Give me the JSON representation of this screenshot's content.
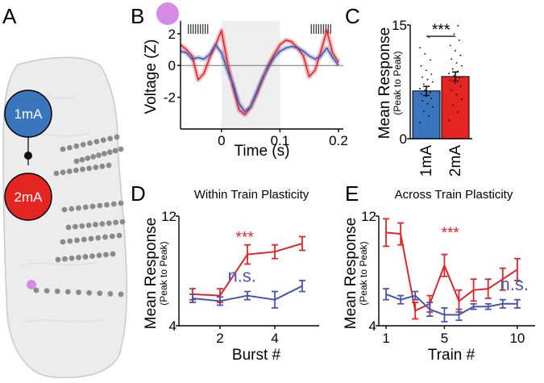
{
  "panels": {
    "A": "A",
    "B": "B",
    "C": "C",
    "D": "D",
    "E": "E"
  },
  "brain": {
    "electrode_1": "1mA",
    "electrode_2": "2mA",
    "colors": {
      "low": "#3a76bd",
      "high": "#e42522",
      "site": "#d58be6",
      "shank": "#8a8a8a"
    }
  },
  "colors": {
    "red": "#e0262a",
    "blue": "#4a55b0",
    "bar_blue": "#3a76bd",
    "bar_red": "#e42522",
    "shade": "#eeeeee"
  },
  "chart_data": [
    {
      "id": "B",
      "type": "line",
      "title": "",
      "xlabel": "Time (s)",
      "ylabel": "Voltage (Z)",
      "xlim": [
        -0.07,
        0.2
      ],
      "ylim": [
        -4,
        2.6
      ],
      "xticks": [
        "0",
        "0.1",
        "0.2"
      ],
      "xtick_values": [
        0,
        0.1,
        0.2
      ],
      "yticks": [
        "-2",
        "0",
        "2"
      ],
      "ytick_values": [
        -2,
        0,
        2
      ],
      "shaded_window": [
        0,
        0.1
      ],
      "stim_marks": [
        -0.04,
        0.17
      ],
      "series": [
        {
          "name": "1mA",
          "color": "blue",
          "x": [
            -0.07,
            -0.06,
            -0.05,
            -0.04,
            -0.03,
            -0.02,
            -0.01,
            0,
            0.01,
            0.02,
            0.03,
            0.04,
            0.05,
            0.06,
            0.07,
            0.08,
            0.09,
            0.1,
            0.11,
            0.12,
            0.13,
            0.14,
            0.15,
            0.16,
            0.17,
            0.18,
            0.19,
            0.2
          ],
          "y": [
            0.9,
            0.8,
            0.4,
            0.5,
            0.4,
            0.7,
            1.3,
            0.8,
            -0.3,
            -1.2,
            -2.4,
            -2.9,
            -2.6,
            -1.7,
            -0.8,
            -0.1,
            0.5,
            0.9,
            1.1,
            1.2,
            1.1,
            0.9,
            0.6,
            0.4,
            0.6,
            1.1,
            0.5,
            0.0
          ]
        },
        {
          "name": "2mA",
          "color": "red",
          "x": [
            -0.07,
            -0.06,
            -0.05,
            -0.04,
            -0.03,
            -0.02,
            -0.01,
            0,
            0.01,
            0.02,
            0.03,
            0.04,
            0.05,
            0.06,
            0.07,
            0.08,
            0.09,
            0.1,
            0.11,
            0.12,
            0.13,
            0.14,
            0.15,
            0.16,
            0.17,
            0.18,
            0.19,
            0.2
          ],
          "y": [
            1.3,
            1.0,
            0.6,
            -0.9,
            -0.5,
            0.5,
            1.3,
            2.2,
            0.2,
            -1.4,
            -2.8,
            -3.1,
            -2.6,
            -1.8,
            -0.9,
            0.0,
            0.7,
            1.3,
            1.6,
            1.5,
            1.1,
            0.6,
            -0.7,
            -0.3,
            0.9,
            2.2,
            0.8,
            0.2
          ]
        }
      ]
    },
    {
      "id": "C",
      "type": "bar",
      "title": "",
      "xlabel": "",
      "ylabel": "Mean Response",
      "ylabel_sub": "(Peak to Peak)",
      "ylim": [
        0,
        15
      ],
      "yticks": [
        "0",
        "15"
      ],
      "ytick_values": [
        0,
        15
      ],
      "categories": [
        "1mA",
        "2mA"
      ],
      "values": [
        6.3,
        8.2
      ],
      "errors": [
        0.6,
        0.6
      ],
      "significance": "***",
      "points_1mA": [
        2.1,
        3.0,
        3.6,
        4.2,
        4.6,
        5.0,
        5.3,
        5.6,
        5.9,
        6.1,
        6.4,
        6.6,
        6.9,
        7.2,
        7.5,
        7.8,
        8.1,
        8.5,
        9.0,
        9.6,
        10.4,
        11.2,
        12.0,
        13.4
      ],
      "points_2mA": [
        2.4,
        3.5,
        4.4,
        5.2,
        5.8,
        6.4,
        6.9,
        7.3,
        7.7,
        8.0,
        8.3,
        8.6,
        8.9,
        9.2,
        9.6,
        10.0,
        10.5,
        11.0,
        11.6,
        12.3,
        13.0,
        13.8,
        14.5,
        14.9
      ]
    },
    {
      "id": "D",
      "type": "line",
      "title": "Within Train Plasticity",
      "xlabel": "Burst #",
      "ylabel": "Mean Response",
      "ylabel_sub": "(Peak to Peak)",
      "xlim": [
        0.5,
        5.5
      ],
      "ylim": [
        4,
        12
      ],
      "xticks": [
        "2",
        "4"
      ],
      "xtick_values": [
        2,
        4
      ],
      "yticks": [
        "4",
        "12"
      ],
      "ytick_values": [
        4,
        12
      ],
      "annotations": [
        {
          "text": "***",
          "color": "red",
          "x": 2.9,
          "y": 10.1
        },
        {
          "text": "n.s.",
          "color": "blue",
          "x": 2.8,
          "y": 7.2
        }
      ],
      "series": [
        {
          "name": "2mA",
          "color": "red",
          "x": [
            1,
            2,
            3,
            4,
            5
          ],
          "y": [
            6.3,
            6.2,
            9.2,
            9.4,
            10.0
          ],
          "err": [
            0.4,
            0.5,
            0.7,
            0.5,
            0.5
          ]
        },
        {
          "name": "1mA",
          "color": "blue",
          "x": [
            1,
            2,
            3,
            4,
            5
          ],
          "y": [
            6.0,
            5.8,
            6.2,
            5.9,
            6.9
          ],
          "err": [
            0.3,
            0.3,
            0.3,
            0.6,
            0.4
          ]
        }
      ]
    },
    {
      "id": "E",
      "type": "line",
      "title": "Across Train Plasticity",
      "xlabel": "Train #",
      "ylabel": "Mean Response",
      "ylabel_sub": "(Peak to Peak)",
      "xlim": [
        0.5,
        11
      ],
      "ylim": [
        4,
        12
      ],
      "xticks": [
        "1",
        "5",
        "10"
      ],
      "xtick_values": [
        1,
        5,
        10
      ],
      "yticks": [
        "4",
        "12"
      ],
      "ytick_values": [
        4,
        12
      ],
      "annotations": [
        {
          "text": "***",
          "color": "red",
          "x": 5.4,
          "y": 10.4
        },
        {
          "text": "n.s.",
          "color": "blue",
          "x": 9.8,
          "y": 6.6
        }
      ],
      "series": [
        {
          "name": "2mA",
          "color": "red",
          "x": [
            1,
            2,
            3,
            4,
            5,
            6,
            7,
            8,
            9,
            10
          ],
          "y": [
            10.8,
            10.7,
            5.1,
            5.6,
            8.4,
            5.8,
            6.6,
            6.7,
            7.4,
            8.1
          ],
          "err": [
            1.0,
            0.8,
            0.6,
            0.6,
            0.8,
            0.8,
            0.8,
            0.7,
            0.8,
            0.8
          ]
        },
        {
          "name": "1mA",
          "color": "blue",
          "x": [
            1,
            2,
            3,
            4,
            5,
            6,
            7,
            8,
            9,
            10
          ],
          "y": [
            6.3,
            5.9,
            6.2,
            5.2,
            4.8,
            4.8,
            5.4,
            5.4,
            5.6,
            5.6
          ],
          "err": [
            0.4,
            0.3,
            0.3,
            0.5,
            0.5,
            0.4,
            0.2,
            0.2,
            0.3,
            0.3
          ]
        }
      ]
    }
  ]
}
